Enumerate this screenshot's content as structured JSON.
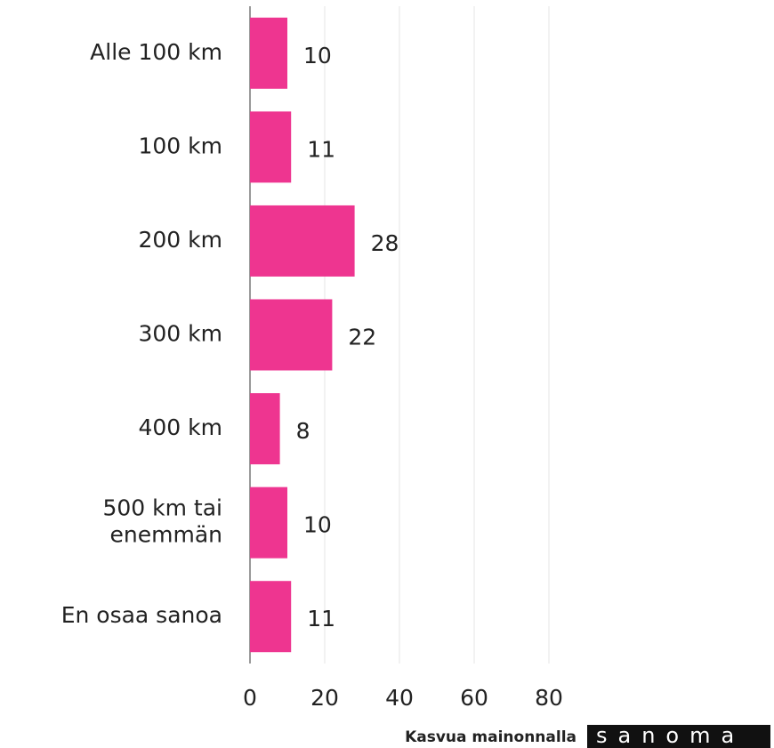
{
  "chart_data": {
    "type": "barh",
    "categories": [
      "Alle 100 km",
      "100 km",
      "200 km",
      "300 km",
      "400 km",
      "500 km tai\nenemmän",
      "En osaa sanoa"
    ],
    "values": [
      10,
      11,
      28,
      22,
      8,
      10,
      11
    ],
    "color": "#ee3590",
    "xlim": [
      0,
      80
    ],
    "xticks": [
      0,
      20,
      40,
      60,
      80
    ],
    "grid": true
  },
  "footer": {
    "text": "Kasvua mainonnalla",
    "logo": "sanoma"
  }
}
